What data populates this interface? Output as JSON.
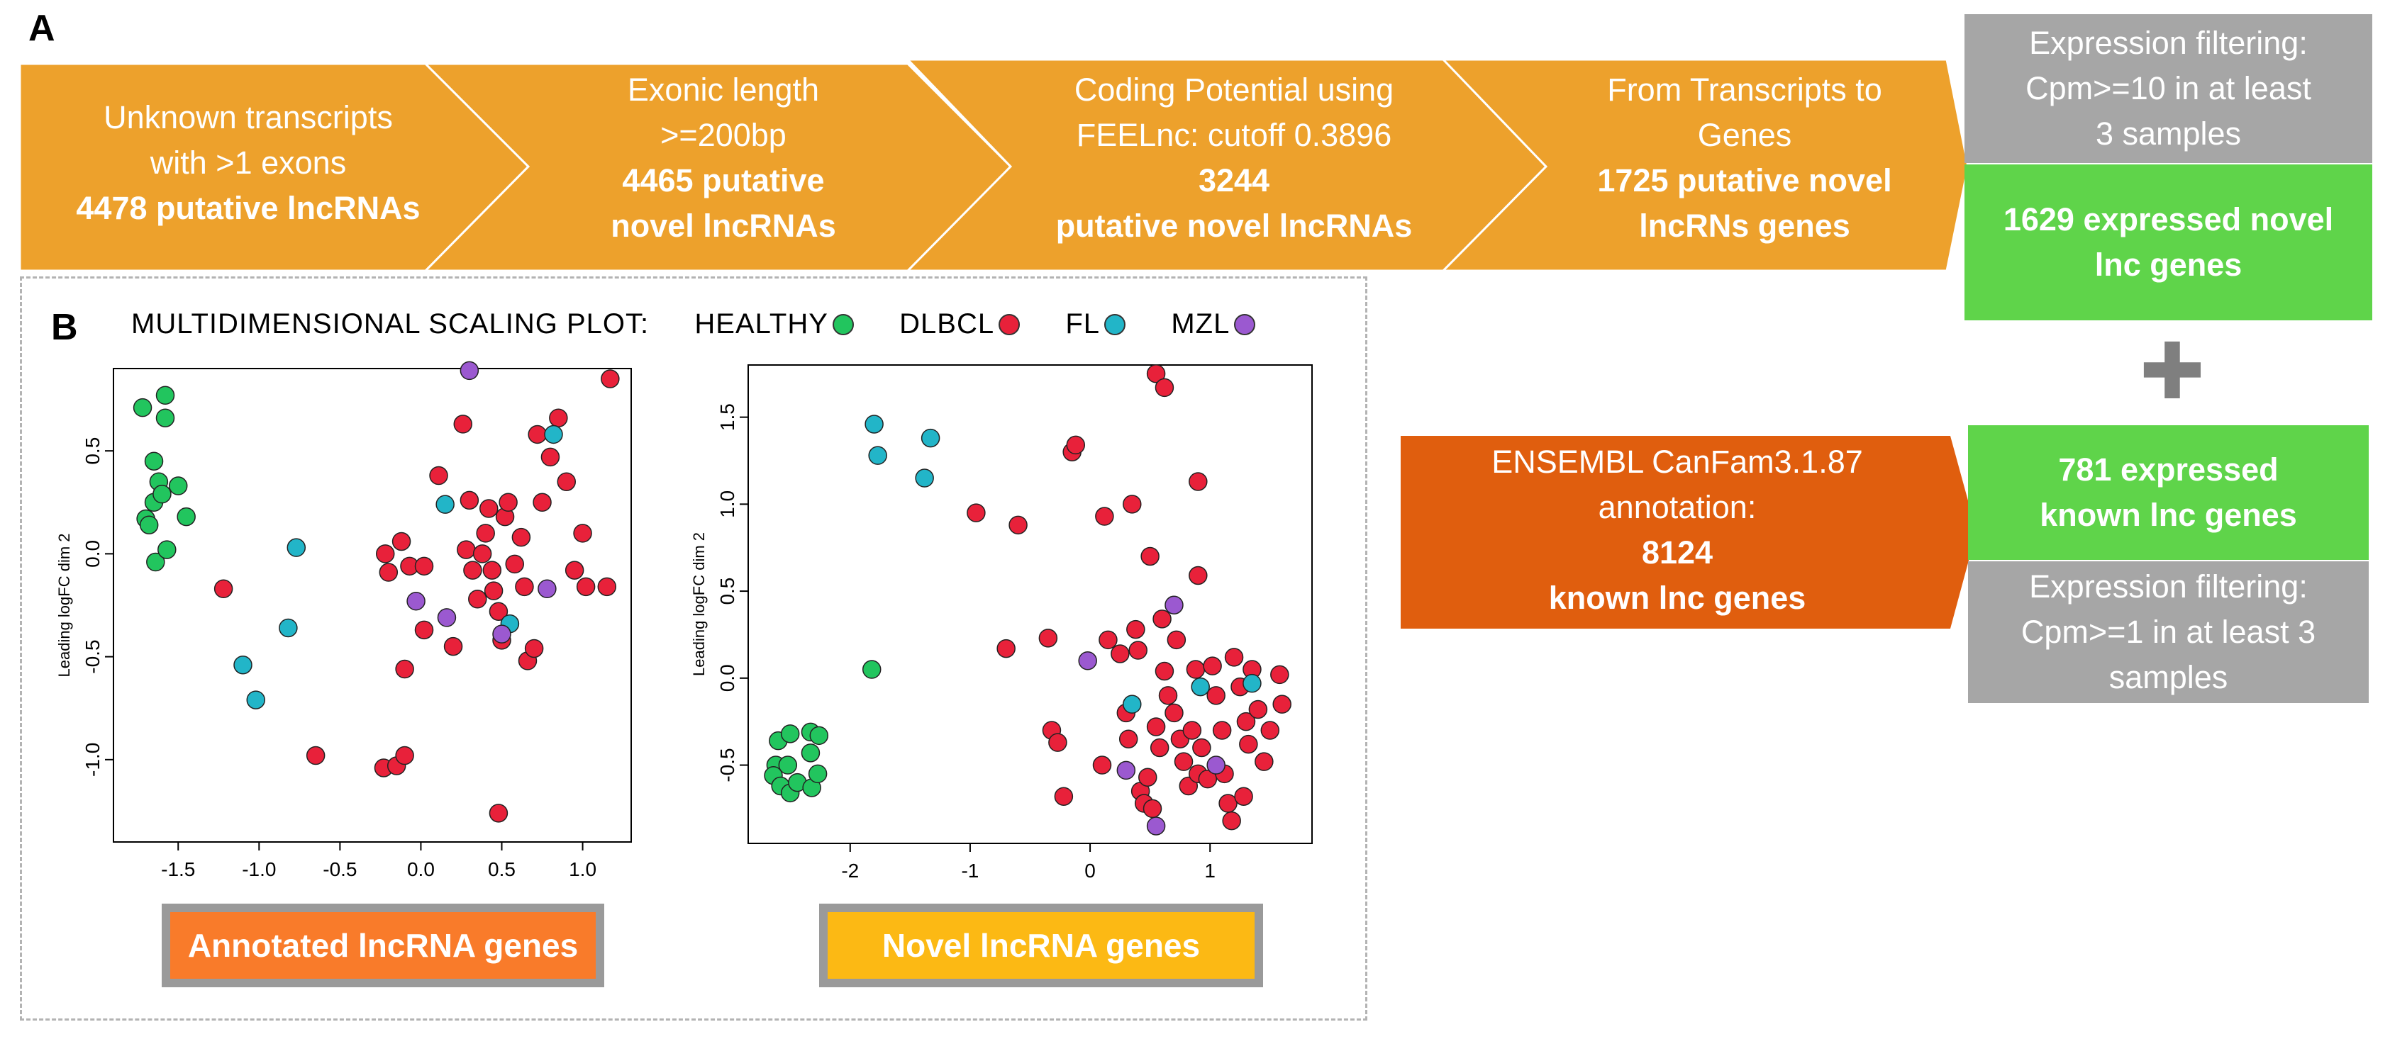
{
  "panel_a_label": "A",
  "panel_b_label": "B",
  "pipeline": {
    "steps": [
      {
        "lines": [
          "Unknown transcripts",
          "with >1 exons"
        ],
        "bold": [
          "4478 putative lncRNAs"
        ]
      },
      {
        "lines": [
          "Exonic length",
          ">=200bp"
        ],
        "bold": [
          "4465 putative",
          "novel lncRNAs"
        ]
      },
      {
        "lines": [
          "Coding Potential using",
          "FEELnc: cutoff 0.3896"
        ],
        "bold": [
          "3244",
          "putative  novel lncRNAs"
        ]
      },
      {
        "lines": [
          "From Transcripts to",
          "Genes"
        ],
        "bold": [
          "1725 putative novel",
          "lncRNs genes"
        ]
      }
    ],
    "filter_novel": [
      "Expression filtering:",
      "Cpm>=10 in at least",
      "3 samples"
    ],
    "novel_result": [
      "1629 expressed novel",
      "lnc genes"
    ],
    "plus_symbol": "✚",
    "ensembl": {
      "lines": [
        "ENSEMBL CanFam3.1.87",
        "annotation:"
      ],
      "bold": [
        "8124",
        "known lnc genes"
      ]
    },
    "known_result": [
      "781 expressed",
      "known lnc genes"
    ],
    "filter_known": [
      "Expression filtering:",
      "Cpm>=1 in at least 3",
      "samples"
    ]
  },
  "legend": {
    "title": "MULTIDIMENSIONAL SCALING PLOT:",
    "items": [
      {
        "label": "HEALTHY",
        "color": "#22c55e"
      },
      {
        "label": "DLBCL",
        "color": "#e8213a"
      },
      {
        "label": "FL",
        "color": "#22b5c8"
      },
      {
        "label": "MZL",
        "color": "#9b59d0"
      }
    ]
  },
  "plot_labels": {
    "annotated": "Annotated lncRNA genes",
    "novel": "Novel lncRNA genes"
  },
  "colors": {
    "arrow": "#eda12c",
    "gray_box": "#a6a6a6",
    "green_box": "#5fd44a",
    "ensembl": "#e05e0e",
    "annotated_label_bg": "#f97b2a",
    "novel_label_bg": "#fcb914"
  },
  "chart_data": [
    {
      "type": "scatter",
      "title": "Annotated lncRNA genes",
      "xlabel": "",
      "ylabel": "Leading logFC dim 2",
      "xlim": [
        -1.9,
        1.3
      ],
      "ylim": [
        -1.4,
        0.9
      ],
      "xticks": [
        -1.5,
        -1.0,
        -0.5,
        0.0,
        0.5,
        1.0
      ],
      "xtick_labels": [
        "-1.5",
        "-1.0",
        "-0.5",
        "0.0",
        "0.5",
        "1.0"
      ],
      "yticks": [
        -1.0,
        -0.5,
        0.0,
        0.5
      ],
      "ytick_labels": [
        "-1.0",
        "-0.5",
        "0.0",
        "0.5"
      ],
      "series": [
        {
          "name": "HEALTHY",
          "points": [
            [
              -1.72,
              0.71
            ],
            [
              -1.58,
              0.77
            ],
            [
              -1.58,
              0.66
            ],
            [
              -1.65,
              0.45
            ],
            [
              -1.62,
              0.35
            ],
            [
              -1.5,
              0.33
            ],
            [
              -1.7,
              0.17
            ],
            [
              -1.68,
              0.14
            ],
            [
              -1.65,
              0.25
            ],
            [
              -1.6,
              0.29
            ],
            [
              -1.45,
              0.18
            ],
            [
              -1.64,
              -0.04
            ],
            [
              -1.57,
              0.02
            ]
          ]
        },
        {
          "name": "DLBCL",
          "points": [
            [
              -1.22,
              -0.17
            ],
            [
              -0.65,
              -0.98
            ],
            [
              -0.23,
              -1.04
            ],
            [
              -0.15,
              -1.03
            ],
            [
              -0.1,
              -0.98
            ],
            [
              -0.1,
              -0.56
            ],
            [
              -0.12,
              0.06
            ],
            [
              -0.2,
              -0.09
            ],
            [
              -0.22,
              0.0
            ],
            [
              -0.07,
              -0.06
            ],
            [
              0.02,
              -0.37
            ],
            [
              0.02,
              -0.06
            ],
            [
              0.11,
              0.38
            ],
            [
              0.2,
              -0.45
            ],
            [
              0.26,
              0.63
            ],
            [
              0.28,
              0.02
            ],
            [
              0.32,
              -0.08
            ],
            [
              0.35,
              -0.22
            ],
            [
              0.38,
              0.0
            ],
            [
              0.4,
              0.1
            ],
            [
              0.42,
              0.22
            ],
            [
              0.44,
              -0.08
            ],
            [
              0.45,
              -0.18
            ],
            [
              0.48,
              -0.28
            ],
            [
              0.5,
              -0.42
            ],
            [
              0.52,
              0.18
            ],
            [
              0.54,
              0.25
            ],
            [
              0.58,
              -0.05
            ],
            [
              0.62,
              0.08
            ],
            [
              0.64,
              -0.16
            ],
            [
              0.66,
              -0.52
            ],
            [
              0.7,
              -0.46
            ],
            [
              0.72,
              0.58
            ],
            [
              0.75,
              0.25
            ],
            [
              0.8,
              0.47
            ],
            [
              0.85,
              0.66
            ],
            [
              0.9,
              0.35
            ],
            [
              0.95,
              -0.08
            ],
            [
              1.0,
              0.1
            ],
            [
              1.02,
              -0.16
            ],
            [
              1.15,
              -0.16
            ],
            [
              1.17,
              0.85
            ],
            [
              0.48,
              -1.26
            ],
            [
              0.3,
              0.26
            ]
          ]
        },
        {
          "name": "FL",
          "points": [
            [
              -1.1,
              -0.54
            ],
            [
              -1.02,
              -0.71
            ],
            [
              -0.82,
              -0.36
            ],
            [
              -0.77,
              0.03
            ],
            [
              0.15,
              0.24
            ],
            [
              0.82,
              0.58
            ],
            [
              0.55,
              -0.34
            ]
          ]
        },
        {
          "name": "MZL",
          "points": [
            [
              0.3,
              0.89
            ],
            [
              -0.03,
              -0.23
            ],
            [
              0.16,
              -0.31
            ],
            [
              0.5,
              -0.39
            ],
            [
              0.78,
              -0.17
            ]
          ]
        }
      ]
    },
    {
      "type": "scatter",
      "title": "Novel lncRNA genes",
      "xlabel": "",
      "ylabel": "Leading logFC dim 2",
      "xlim": [
        -2.85,
        1.85
      ],
      "ylim": [
        -0.95,
        1.8
      ],
      "xticks": [
        -2,
        -1,
        0,
        1
      ],
      "xtick_labels": [
        "-2",
        "-1",
        "0",
        "1"
      ],
      "yticks": [
        -0.5,
        0.0,
        0.5,
        1.0,
        1.5
      ],
      "ytick_labels": [
        "-0.5",
        "0.0",
        "0.5",
        "1.0",
        "1.5"
      ],
      "series": [
        {
          "name": "HEALTHY",
          "points": [
            [
              -1.82,
              0.05
            ],
            [
              -2.6,
              -0.36
            ],
            [
              -2.5,
              -0.32
            ],
            [
              -2.33,
              -0.31
            ],
            [
              -2.26,
              -0.33
            ],
            [
              -2.62,
              -0.5
            ],
            [
              -2.52,
              -0.5
            ],
            [
              -2.33,
              -0.43
            ],
            [
              -2.64,
              -0.56
            ],
            [
              -2.58,
              -0.62
            ],
            [
              -2.5,
              -0.66
            ],
            [
              -2.44,
              -0.6
            ],
            [
              -2.32,
              -0.63
            ],
            [
              -2.27,
              -0.55
            ]
          ]
        },
        {
          "name": "DLBCL",
          "points": [
            [
              -0.95,
              0.95
            ],
            [
              -0.6,
              0.88
            ],
            [
              -0.15,
              1.3
            ],
            [
              -0.12,
              1.34
            ],
            [
              0.12,
              0.93
            ],
            [
              0.35,
              1.0
            ],
            [
              0.55,
              1.75
            ],
            [
              0.62,
              1.67
            ],
            [
              0.9,
              1.13
            ],
            [
              0.9,
              0.59
            ],
            [
              0.5,
              0.7
            ],
            [
              -0.7,
              0.17
            ],
            [
              -0.35,
              0.23
            ],
            [
              -0.32,
              -0.3
            ],
            [
              -0.27,
              -0.37
            ],
            [
              -0.22,
              -0.68
            ],
            [
              0.1,
              -0.5
            ],
            [
              0.15,
              0.22
            ],
            [
              0.25,
              0.14
            ],
            [
              0.3,
              -0.2
            ],
            [
              0.32,
              -0.35
            ],
            [
              0.38,
              0.28
            ],
            [
              0.4,
              0.16
            ],
            [
              0.42,
              -0.65
            ],
            [
              0.45,
              -0.72
            ],
            [
              0.48,
              -0.57
            ],
            [
              0.52,
              -0.75
            ],
            [
              0.55,
              -0.28
            ],
            [
              0.58,
              -0.4
            ],
            [
              0.6,
              0.34
            ],
            [
              0.62,
              0.04
            ],
            [
              0.65,
              -0.1
            ],
            [
              0.7,
              -0.2
            ],
            [
              0.72,
              0.22
            ],
            [
              0.75,
              -0.35
            ],
            [
              0.78,
              -0.48
            ],
            [
              0.82,
              -0.62
            ],
            [
              0.85,
              -0.3
            ],
            [
              0.88,
              0.05
            ],
            [
              0.9,
              -0.55
            ],
            [
              0.93,
              -0.4
            ],
            [
              0.98,
              -0.58
            ],
            [
              1.02,
              0.07
            ],
            [
              1.05,
              -0.1
            ],
            [
              1.1,
              -0.3
            ],
            [
              1.12,
              -0.55
            ],
            [
              1.15,
              -0.72
            ],
            [
              1.18,
              -0.82
            ],
            [
              1.2,
              0.12
            ],
            [
              1.25,
              -0.05
            ],
            [
              1.3,
              -0.25
            ],
            [
              1.32,
              -0.38
            ],
            [
              1.35,
              0.05
            ],
            [
              1.4,
              -0.18
            ],
            [
              1.45,
              -0.48
            ],
            [
              1.5,
              -0.3
            ],
            [
              1.58,
              0.02
            ],
            [
              1.6,
              -0.15
            ],
            [
              1.28,
              -0.68
            ]
          ]
        },
        {
          "name": "FL",
          "points": [
            [
              -1.8,
              1.46
            ],
            [
              -1.77,
              1.28
            ],
            [
              -1.33,
              1.38
            ],
            [
              -1.38,
              1.15
            ],
            [
              0.35,
              -0.15
            ],
            [
              0.92,
              -0.05
            ],
            [
              1.35,
              -0.03
            ]
          ]
        },
        {
          "name": "MZL",
          "points": [
            [
              -0.02,
              0.1
            ],
            [
              0.3,
              -0.53
            ],
            [
              0.55,
              -0.85
            ],
            [
              0.7,
              0.42
            ],
            [
              1.05,
              -0.5
            ]
          ]
        }
      ]
    }
  ]
}
